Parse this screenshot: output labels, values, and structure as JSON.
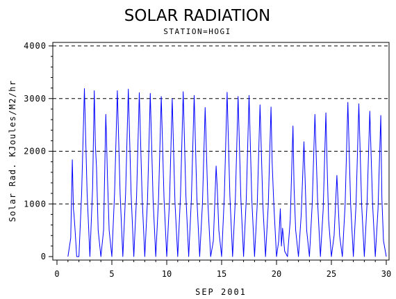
{
  "chart_data": {
    "type": "line",
    "title": "SOLAR RADIATION",
    "subtitle": "STATION=HOGI",
    "xlabel": "SEP 2001",
    "ylabel": "Solar Rad. KJoules/M2/hr",
    "xlim": [
      0,
      30
    ],
    "ylim": [
      0,
      4000
    ],
    "x_ticks": [
      "0",
      "5",
      "10",
      "15",
      "20",
      "25",
      "30"
    ],
    "y_ticks": [
      "0",
      "1000",
      "2000",
      "3000",
      "4000"
    ],
    "grid": "horizontal dashed at 1000, 2000, 3000, 4000",
    "legend": "none",
    "colors": {
      "line": "#0000ff",
      "axis": "#000000",
      "grid": "#000000"
    },
    "series": [
      {
        "x": [
          1.0,
          1.25,
          1.4,
          1.5,
          1.55,
          1.65,
          1.8,
          2.0,
          2.0,
          2.25,
          2.5,
          2.75,
          3.0,
          3.0,
          3.25,
          3.4,
          3.5,
          3.6,
          3.75,
          4.0,
          4.0,
          4.25,
          4.45,
          4.5,
          4.6,
          4.75,
          5.0,
          5.0,
          5.25,
          5.5,
          5.75,
          6.0,
          6.0,
          6.25,
          6.5,
          6.75,
          7.0,
          7.0,
          7.25,
          7.5,
          7.75,
          8.0,
          8.0,
          8.25,
          8.5,
          8.75,
          9.0,
          9.0,
          9.25,
          9.5,
          9.75,
          10.0,
          10.0,
          10.25,
          10.5,
          10.75,
          11.0,
          11.0,
          11.25,
          11.5,
          11.75,
          12.0,
          12.0,
          12.25,
          12.5,
          12.75,
          13.0,
          13.0,
          13.25,
          13.5,
          13.75,
          14.0,
          14.0,
          14.25,
          14.5,
          14.6,
          14.75,
          15.0,
          15.0,
          15.25,
          15.5,
          15.75,
          16.0,
          16.0,
          16.25,
          16.5,
          16.75,
          17.0,
          17.0,
          17.25,
          17.5,
          17.75,
          18.0,
          18.0,
          18.25,
          18.5,
          18.75,
          19.0,
          19.0,
          19.25,
          19.5,
          19.6,
          19.75,
          20.0,
          20.0,
          20.2,
          20.35,
          20.45,
          20.55,
          20.75,
          21.0,
          21.0,
          21.25,
          21.5,
          21.6,
          21.75,
          22.0,
          22.0,
          22.25,
          22.5,
          22.6,
          22.75,
          23.0,
          23.0,
          23.25,
          23.5,
          23.75,
          24.0,
          24.0,
          24.25,
          24.5,
          24.6,
          24.75,
          25.0,
          25.0,
          25.25,
          25.5,
          25.75,
          26.0,
          26.0,
          26.25,
          26.5,
          26.75,
          27.0,
          27.0,
          27.25,
          27.5,
          27.75,
          28.0,
          28.0,
          28.25,
          28.5,
          28.75,
          29.0,
          29.0,
          29.25,
          29.5,
          29.6,
          29.75,
          30.0
        ],
        "y": [
          0,
          350,
          1840,
          900,
          800,
          500,
          0,
          0,
          0,
          1200,
          3190,
          1200,
          0,
          0,
          1300,
          3150,
          2100,
          1700,
          500,
          0,
          0,
          500,
          2700,
          2350,
          1500,
          500,
          0,
          0,
          1200,
          3150,
          1200,
          0,
          0,
          1200,
          3180,
          1200,
          0,
          0,
          1150,
          3110,
          1150,
          0,
          0,
          1100,
          3100,
          1100,
          0,
          0,
          1100,
          3040,
          1100,
          0,
          0,
          1050,
          3000,
          1050,
          0,
          0,
          1150,
          3130,
          1150,
          0,
          0,
          1100,
          3060,
          1100,
          0,
          0,
          1000,
          2830,
          1000,
          0,
          0,
          300,
          1720,
          1300,
          500,
          0,
          0,
          1150,
          3120,
          1150,
          0,
          0,
          1100,
          3040,
          1100,
          0,
          0,
          1100,
          3060,
          1100,
          0,
          0,
          1000,
          2880,
          1000,
          0,
          0,
          1000,
          2840,
          1800,
          1000,
          0,
          0,
          300,
          910,
          200,
          540,
          100,
          0,
          0,
          700,
          2480,
          1300,
          500,
          0,
          0,
          800,
          2180,
          1500,
          500,
          0,
          0,
          1000,
          2700,
          1000,
          0,
          0,
          900,
          2730,
          1800,
          700,
          0,
          0,
          400,
          1540,
          400,
          0,
          0,
          1000,
          2930,
          1000,
          0,
          0,
          1000,
          2900,
          1000,
          0,
          0,
          1000,
          2760,
          1000,
          0,
          0,
          900,
          2680,
          1100,
          300,
          0
        ]
      }
    ]
  }
}
